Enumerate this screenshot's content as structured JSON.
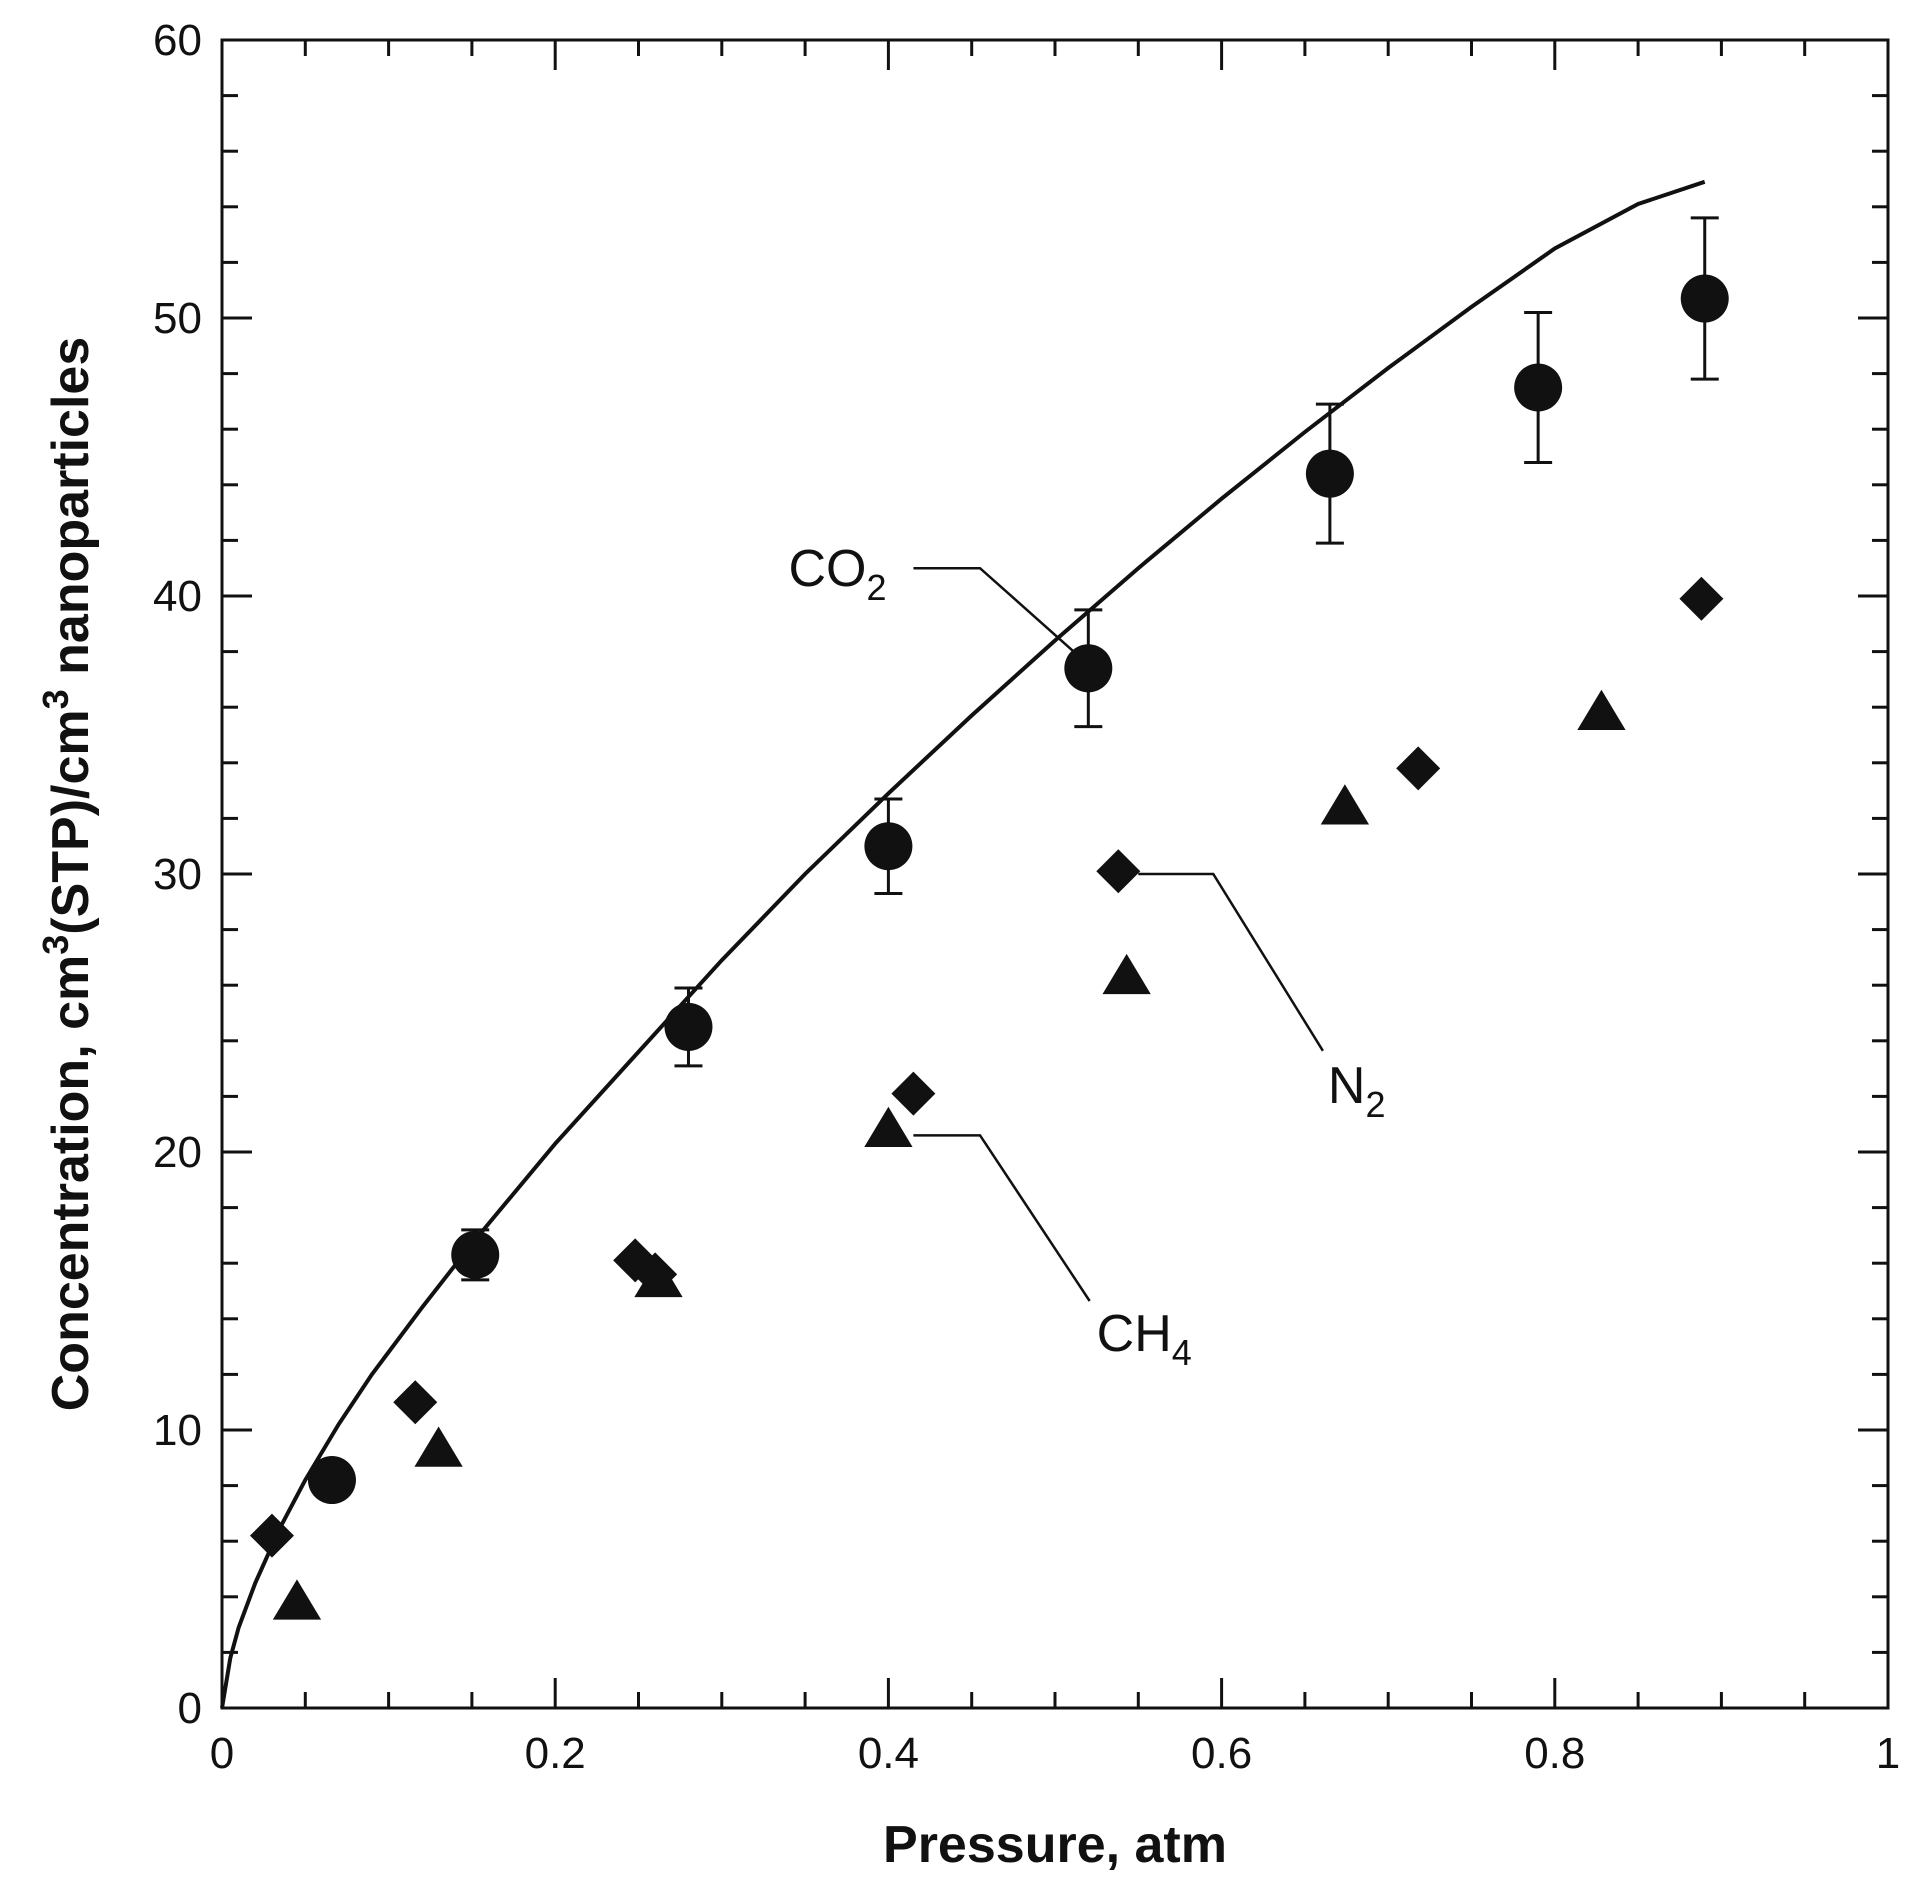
{
  "chart_data": {
    "type": "scatter",
    "title": "",
    "xlabel": "Pressure, atm",
    "ylabel": "Concentration, cm³(STP)/cm³ nanoparticles",
    "ylabel_parts": {
      "p1": "Concentration, cm",
      "sup1": "3",
      "p2": "(STP)/cm",
      "sup2": "3",
      "p3": " nanoparticles"
    },
    "xlim": [
      0,
      1
    ],
    "ylim": [
      0,
      60
    ],
    "x_ticks": [
      0,
      0.2,
      0.4,
      0.6,
      0.8,
      1
    ],
    "x_tick_labels": [
      "0",
      "0.2",
      "0.4",
      "0.6",
      "0.8",
      "1"
    ],
    "y_ticks": [
      0,
      10,
      20,
      30,
      40,
      50,
      60
    ],
    "y_tick_labels": [
      "0",
      "10",
      "20",
      "30",
      "40",
      "50",
      "60"
    ],
    "x_minor_step": 0.05,
    "y_minor_step": 2,
    "grid": false,
    "series": [
      {
        "name": "CO2",
        "label_main": "CO",
        "label_sub": "2",
        "marker": "circle",
        "points": [
          {
            "x": 0.066,
            "y": 8.2
          },
          {
            "x": 0.152,
            "y": 16.3,
            "err": 0.9
          },
          {
            "x": 0.28,
            "y": 24.5,
            "err": 1.4
          },
          {
            "x": 0.4,
            "y": 31.0,
            "err": 1.7
          },
          {
            "x": 0.52,
            "y": 37.4,
            "err": 2.1
          },
          {
            "x": 0.665,
            "y": 44.4,
            "err": 2.5
          },
          {
            "x": 0.79,
            "y": 47.5,
            "err": 2.7
          },
          {
            "x": 0.89,
            "y": 50.7,
            "err": 2.9
          }
        ]
      },
      {
        "name": "N2",
        "label_main": "N",
        "label_sub": "2",
        "marker": "diamond",
        "points": [
          {
            "x": 0.03,
            "y": 6.2
          },
          {
            "x": 0.116,
            "y": 11.0
          },
          {
            "x": 0.248,
            "y": 16.1
          },
          {
            "x": 0.26,
            "y": 15.6
          },
          {
            "x": 0.415,
            "y": 22.1
          },
          {
            "x": 0.538,
            "y": 30.1
          },
          {
            "x": 0.718,
            "y": 33.8
          },
          {
            "x": 0.888,
            "y": 39.9
          }
        ]
      },
      {
        "name": "CH4",
        "label_main": "CH",
        "label_sub": "4",
        "marker": "triangle",
        "points": [
          {
            "x": 0.045,
            "y": 3.8
          },
          {
            "x": 0.13,
            "y": 9.3
          },
          {
            "x": 0.262,
            "y": 15.4
          },
          {
            "x": 0.4,
            "y": 20.8
          },
          {
            "x": 0.543,
            "y": 26.3
          },
          {
            "x": 0.674,
            "y": 32.4
          },
          {
            "x": 0.828,
            "y": 35.8
          }
        ]
      }
    ],
    "fit_curve": {
      "name": "CO2 fit",
      "x": [
        0.0,
        0.005,
        0.01,
        0.02,
        0.035,
        0.05,
        0.07,
        0.09,
        0.12,
        0.15,
        0.2,
        0.25,
        0.3,
        0.35,
        0.4,
        0.45,
        0.5,
        0.55,
        0.6,
        0.65,
        0.7,
        0.75,
        0.8,
        0.85,
        0.89
      ],
      "y": [
        0.0,
        1.8,
        2.9,
        4.5,
        6.5,
        8.2,
        10.2,
        12.0,
        14.4,
        16.7,
        20.3,
        23.6,
        26.9,
        30.0,
        32.9,
        35.7,
        38.4,
        41.0,
        43.5,
        45.9,
        48.2,
        50.4,
        52.5,
        54.1,
        54.9
      ]
    },
    "annotations": [
      {
        "series": "CO2",
        "text_x": 0.34,
        "text_y": 41.0,
        "elbow_x": 0.455,
        "elbow_y": 41.0,
        "end_x": 0.515,
        "end_y": 37.8
      },
      {
        "series": "N2",
        "text_x": 0.662,
        "text_y": 24.0,
        "elbow_x": 0.595,
        "elbow_y": 30.0,
        "end_x": 0.55,
        "end_y": 30.0
      },
      {
        "series": "CH4",
        "text_x": 0.528,
        "text_y": 15.0,
        "elbow_x": 0.455,
        "elbow_y": 20.6,
        "end_x": 0.415,
        "end_y": 20.6
      }
    ]
  }
}
